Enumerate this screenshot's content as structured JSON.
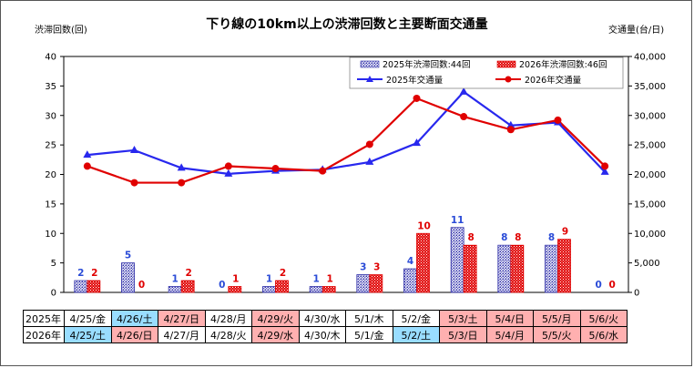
{
  "chart_data": {
    "type": "bar+line",
    "title": "下り線の10km以上の渋滞回数と主要断面交通量",
    "y_left_label": "渋滞回数(回)",
    "y_right_label": "交通量(台/日)",
    "y_left_ticks": [
      "0",
      "5",
      "10",
      "15",
      "20",
      "25",
      "30",
      "35",
      "40"
    ],
    "y_right_ticks": [
      "0",
      "5,000",
      "10,000",
      "15,000",
      "20,000",
      "25,000",
      "30,000",
      "35,000",
      "40,000"
    ],
    "ylim_left": [
      0,
      40
    ],
    "ylim_right": [
      0,
      40000
    ],
    "legend_position": "top-right",
    "legend": {
      "bar2025": "2025年渋滞回数:44回",
      "bar2026": "2026年渋滞回数:46回",
      "line2025": "2025年交通量",
      "line2026": "2026年交通量"
    },
    "bars_2025": [
      2,
      5,
      1,
      0,
      1,
      1,
      3,
      4,
      11,
      8,
      8,
      0
    ],
    "bars_2026": [
      2,
      0,
      2,
      1,
      2,
      1,
      3,
      10,
      8,
      8,
      9,
      0
    ],
    "traffic_2025": [
      23300,
      24100,
      21100,
      20100,
      20600,
      20800,
      22100,
      25300,
      34000,
      28300,
      28800,
      20400
    ],
    "traffic_2026": [
      21400,
      18600,
      18600,
      21400,
      21000,
      20600,
      25100,
      32900,
      29800,
      27600,
      29200,
      21400
    ],
    "colors": {
      "bar2025": "#2a2aa6",
      "bar2026": "#e00000",
      "line2025": "#2828ee",
      "line2026": "#e00000",
      "label2025": "#2a4bd7",
      "label2026": "#e00000"
    }
  },
  "table": {
    "row_labels": [
      "2025年",
      "2026年"
    ],
    "rows": [
      [
        {
          "text": "4/25/金",
          "kind": "wk"
        },
        {
          "text": "4/26/土",
          "kind": "sat"
        },
        {
          "text": "4/27/日",
          "kind": "hol"
        },
        {
          "text": "4/28/月",
          "kind": "wk"
        },
        {
          "text": "4/29/火",
          "kind": "hol"
        },
        {
          "text": "4/30/水",
          "kind": "wk"
        },
        {
          "text": "5/1/木",
          "kind": "wk"
        },
        {
          "text": "5/2/金",
          "kind": "wk"
        },
        {
          "text": "5/3/土",
          "kind": "hol"
        },
        {
          "text": "5/4/日",
          "kind": "hol"
        },
        {
          "text": "5/5/月",
          "kind": "hol"
        },
        {
          "text": "5/6/火",
          "kind": "hol"
        }
      ],
      [
        {
          "text": "4/25/土",
          "kind": "sat"
        },
        {
          "text": "4/26/日",
          "kind": "hol"
        },
        {
          "text": "4/27/月",
          "kind": "wk"
        },
        {
          "text": "4/28/火",
          "kind": "wk"
        },
        {
          "text": "4/29/水",
          "kind": "hol"
        },
        {
          "text": "4/30/木",
          "kind": "wk"
        },
        {
          "text": "5/1/金",
          "kind": "wk"
        },
        {
          "text": "5/2/土",
          "kind": "sat"
        },
        {
          "text": "5/3/日",
          "kind": "hol"
        },
        {
          "text": "5/4/月",
          "kind": "hol"
        },
        {
          "text": "5/5/火",
          "kind": "hol"
        },
        {
          "text": "5/6/水",
          "kind": "hol"
        }
      ]
    ]
  }
}
